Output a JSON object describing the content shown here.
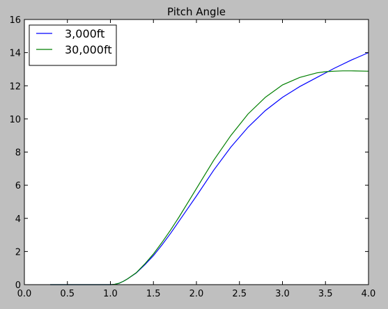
{
  "chart_data": {
    "type": "line",
    "title": "Pitch Angle",
    "xlabel": "",
    "ylabel": "",
    "xlim": [
      0.0,
      4.0
    ],
    "ylim": [
      0,
      16
    ],
    "xticks": [
      "0.0",
      "0.5",
      "1.0",
      "1.5",
      "2.0",
      "2.5",
      "3.0",
      "3.5",
      "4.0"
    ],
    "yticks": [
      "0",
      "2",
      "4",
      "6",
      "8",
      "10",
      "12",
      "14",
      "16"
    ],
    "grid": false,
    "legend_position": "top-left",
    "series": [
      {
        "name": "3,000ft",
        "color": "#0000ff",
        "x": [
          0.3,
          0.5,
          0.8,
          1.0,
          1.05,
          1.1,
          1.15,
          1.2,
          1.3,
          1.4,
          1.5,
          1.6,
          1.7,
          1.8,
          1.9,
          2.0,
          2.2,
          2.4,
          2.6,
          2.8,
          3.0,
          3.2,
          3.4,
          3.6,
          3.8,
          4.0
        ],
        "y": [
          0,
          0,
          0,
          0,
          0.02,
          0.08,
          0.2,
          0.35,
          0.7,
          1.2,
          1.75,
          2.4,
          3.1,
          3.85,
          4.6,
          5.35,
          6.9,
          8.3,
          9.5,
          10.5,
          11.3,
          11.95,
          12.5,
          13.05,
          13.55,
          14.0
        ]
      },
      {
        "name": "30,000ft",
        "color": "#007f00",
        "x": [
          0.3,
          0.5,
          0.8,
          1.0,
          1.05,
          1.1,
          1.15,
          1.2,
          1.3,
          1.4,
          1.5,
          1.6,
          1.7,
          1.8,
          1.9,
          2.0,
          2.2,
          2.4,
          2.6,
          2.8,
          3.0,
          3.2,
          3.4,
          3.5,
          3.6,
          3.7,
          3.8,
          4.0
        ],
        "y": [
          0,
          0,
          0,
          0,
          0.02,
          0.08,
          0.2,
          0.35,
          0.72,
          1.25,
          1.85,
          2.55,
          3.3,
          4.1,
          4.95,
          5.8,
          7.5,
          9.0,
          10.3,
          11.3,
          12.05,
          12.5,
          12.78,
          12.85,
          12.88,
          12.9,
          12.9,
          12.88
        ]
      }
    ]
  }
}
